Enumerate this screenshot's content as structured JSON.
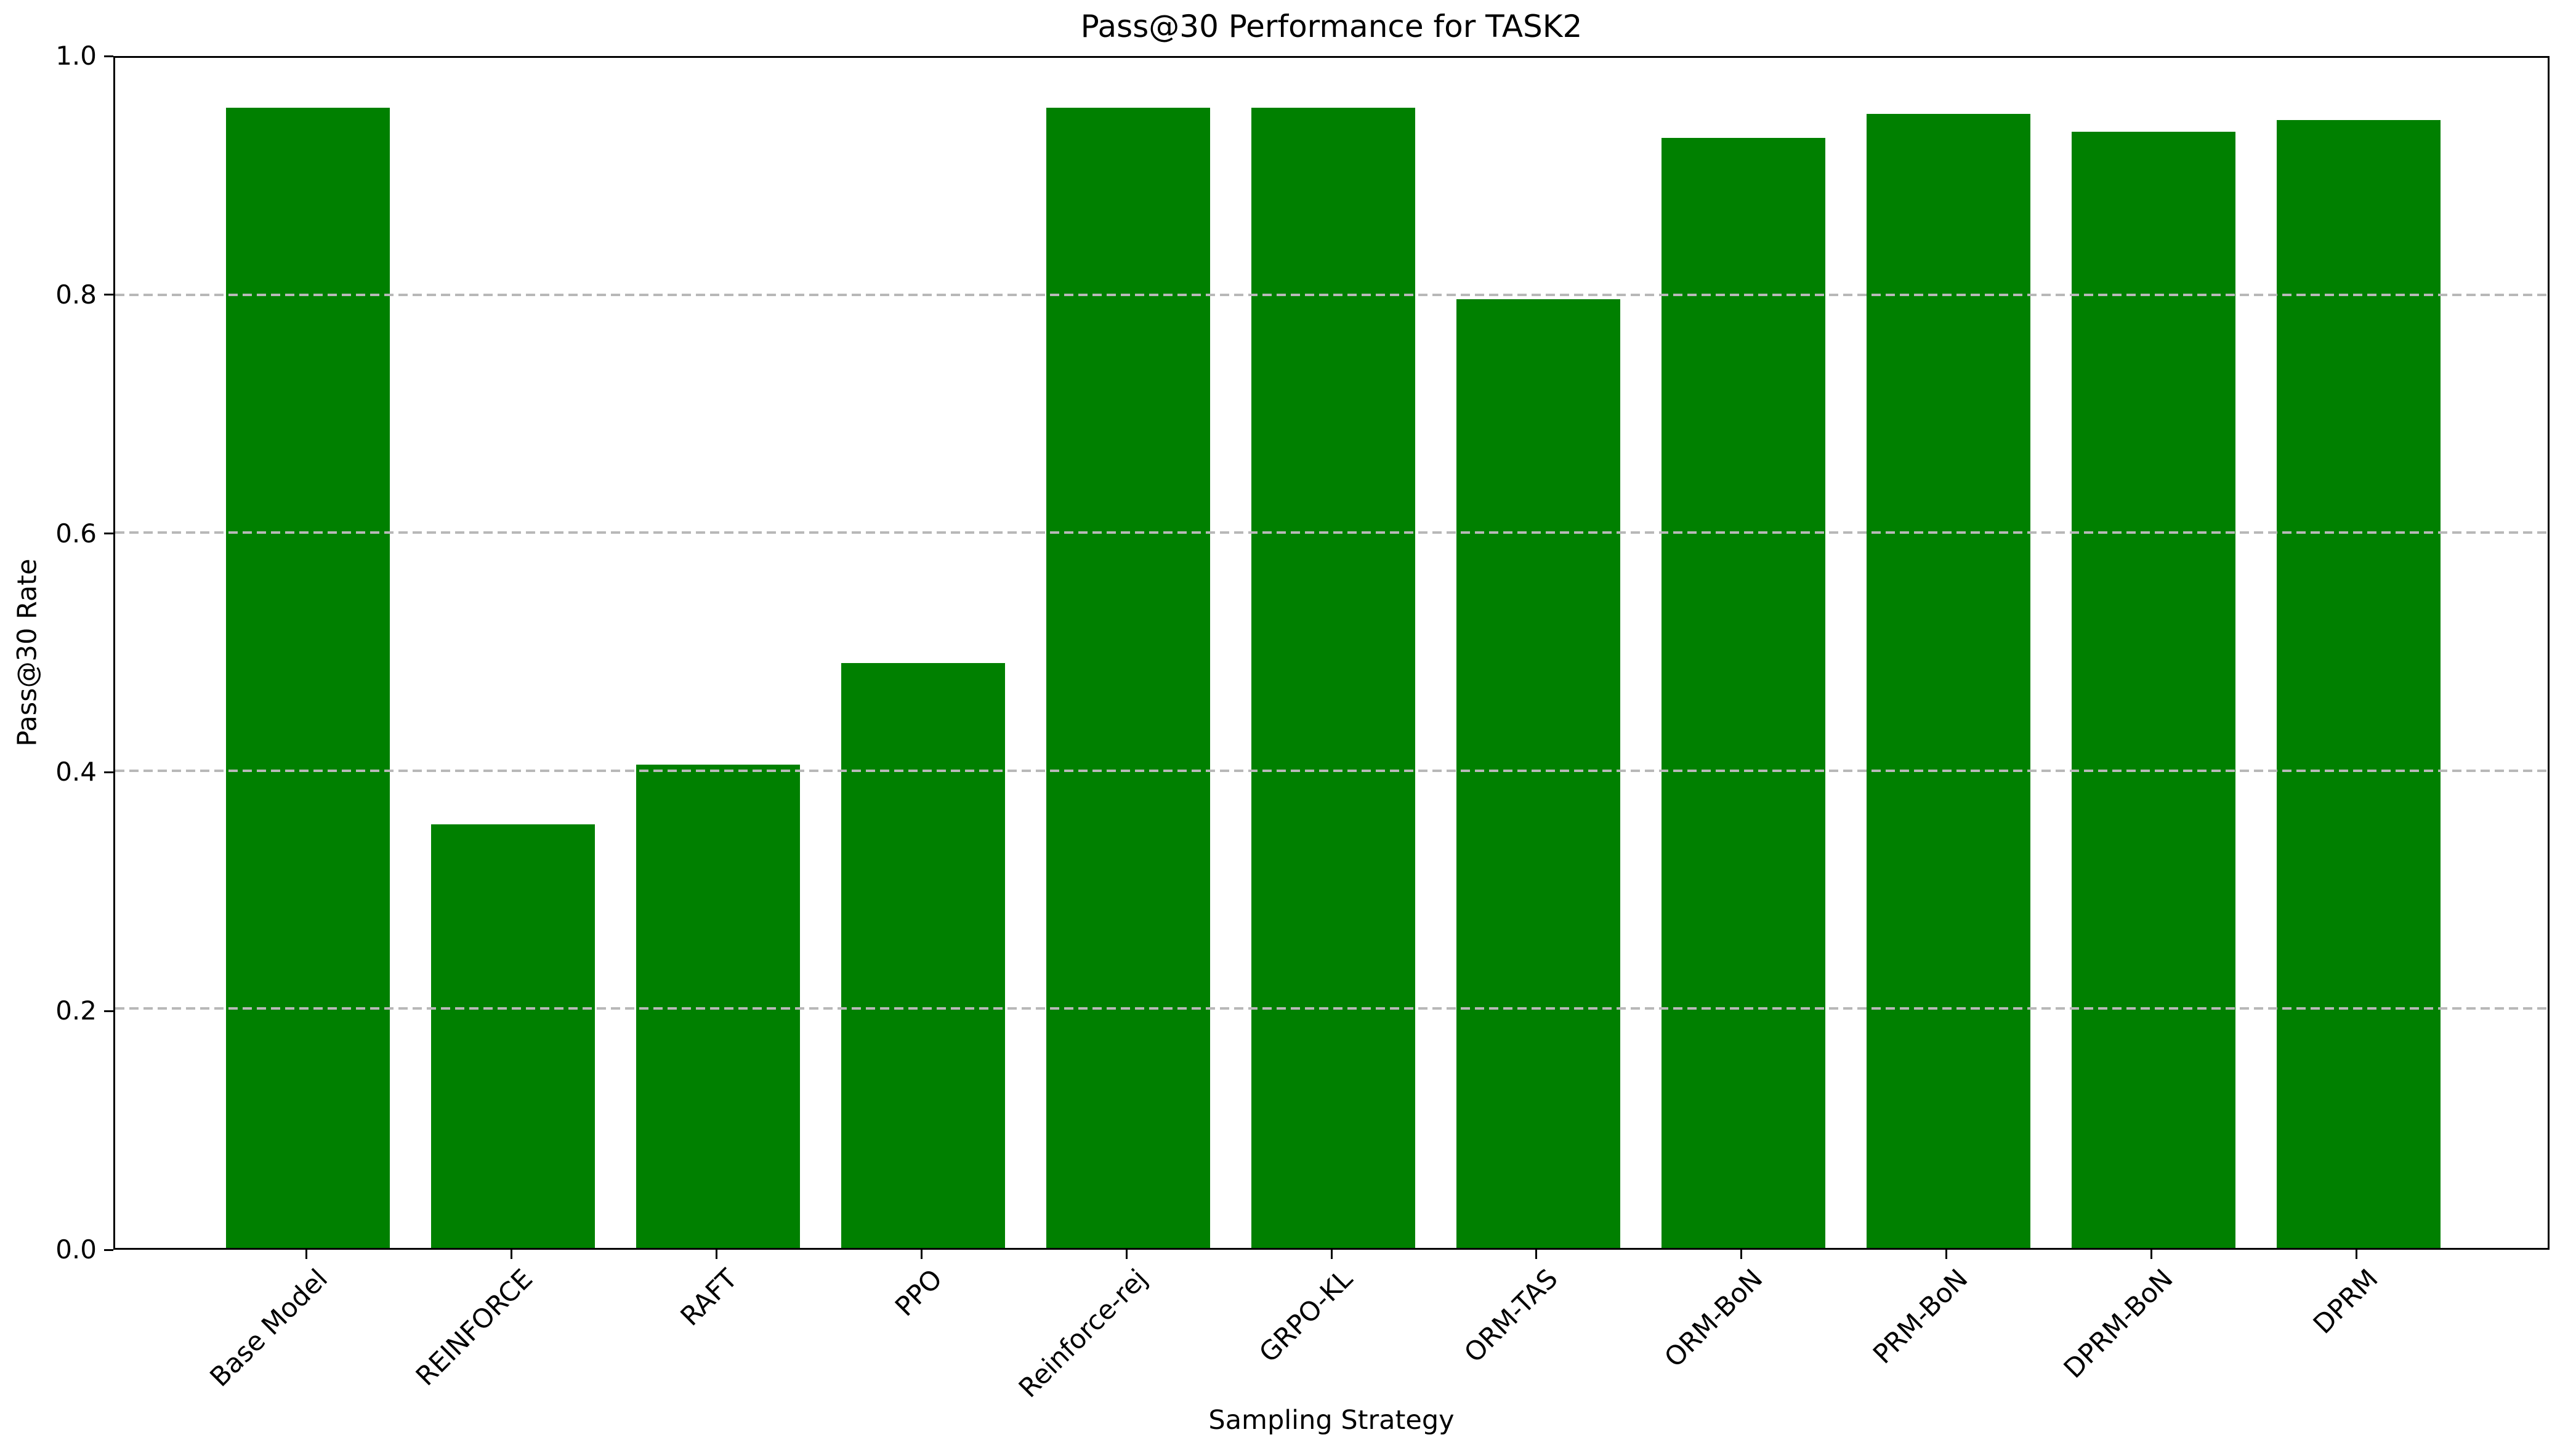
{
  "chart_data": {
    "type": "bar",
    "title": "Pass@30 Performance for TASK2",
    "xlabel": "Sampling Strategy",
    "ylabel": "Pass@30 Rate",
    "categories": [
      "Base Model",
      "REINFORCE",
      "RAFT",
      "PPO",
      "Reinforce-rej",
      "GRPO-KL",
      "ORM-TAS",
      "ORM-BoN",
      "PRM-BoN",
      "DPRM-BoN",
      "DPRM"
    ],
    "values": [
      0.955,
      0.355,
      0.405,
      0.49,
      0.955,
      0.955,
      0.795,
      0.93,
      0.95,
      0.935,
      0.945
    ],
    "ylim": [
      0.0,
      1.0
    ],
    "yticks": [
      0.0,
      0.2,
      0.4,
      0.6,
      0.8,
      1.0
    ],
    "ytick_labels": [
      "0.0",
      "0.2",
      "0.4",
      "0.6",
      "0.8",
      "1.0"
    ],
    "xtick_rotation_deg": 45,
    "bar_color": "#008000",
    "grid": {
      "axis": "y",
      "style": "dashed",
      "color": "#b8b8b8",
      "on": true
    },
    "spine_color": "#000000",
    "background_color": "#ffffff"
  }
}
